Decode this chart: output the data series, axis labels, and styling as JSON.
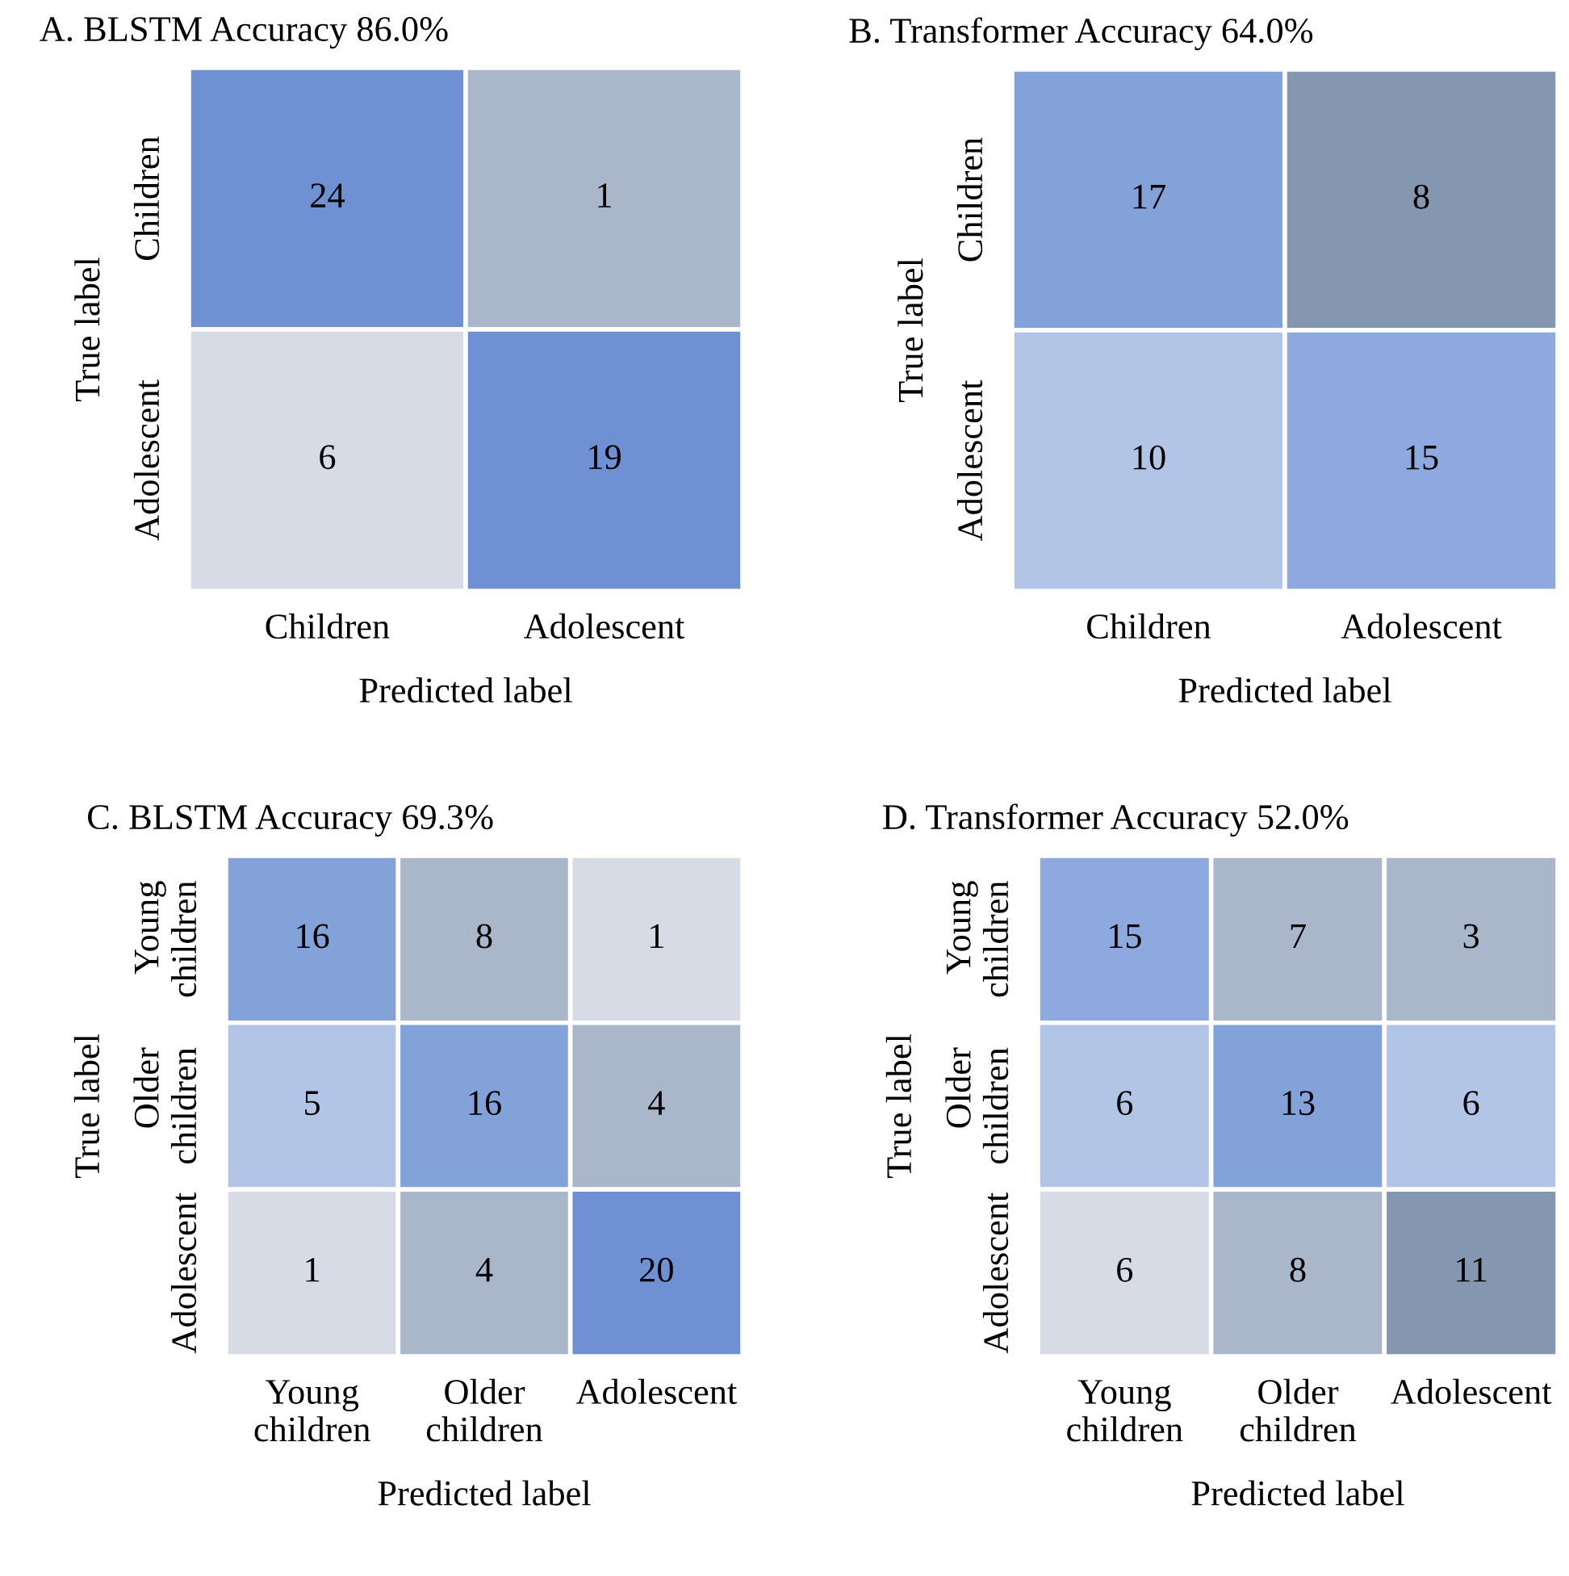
{
  "chart_data": [
    {
      "type": "heatmap",
      "title": "A. BLSTM Accuracy 86.0%",
      "xlabel": "Predicted label",
      "ylabel": "True label",
      "categories": [
        "Children",
        "Adolescent"
      ],
      "y_categories": [
        "Children",
        "Adolescent"
      ],
      "cells": [
        [
          24,
          1
        ],
        [
          6,
          19
        ]
      ],
      "colors": [
        "#6f91d3",
        "#aab6ca",
        "#d6dbe5",
        "#6f91d3"
      ],
      "data_labels": true
    },
    {
      "type": "heatmap",
      "title": "B. Transformer Accuracy 64.0%",
      "xlabel": "Predicted label",
      "ylabel": "True label",
      "categories": [
        "Children",
        "Adolescent"
      ],
      "y_categories": [
        "Children",
        "Adolescent"
      ],
      "cells": [
        [
          17,
          8
        ],
        [
          10,
          15
        ]
      ],
      "colors": [
        "#83a2da",
        "#8496b0",
        "#b3c5e6",
        "#8ea9dd"
      ],
      "data_labels": true
    },
    {
      "type": "heatmap",
      "title": "C. BLSTM Accuracy 69.3%",
      "xlabel": "Predicted label",
      "ylabel": "True label",
      "categories": [
        "Young\nchildren",
        "Older\nchildren",
        "Adolescent"
      ],
      "y_categories": [
        "Young\nchildren",
        "Older\nchildren",
        "Adolescent"
      ],
      "cells": [
        [
          16,
          8,
          1
        ],
        [
          5,
          16,
          4
        ],
        [
          1,
          4,
          20
        ]
      ],
      "colors": [
        "#83a2da",
        "#aab6ca",
        "#d6dbe5",
        "#b3c5e6",
        "#83a2da",
        "#aab6ca",
        "#d6dbe5",
        "#aab6ca",
        "#6f91d3"
      ],
      "data_labels": true
    },
    {
      "type": "heatmap",
      "title": "D. Transformer Accuracy 52.0%",
      "xlabel": "Predicted label",
      "ylabel": "True label",
      "categories": [
        "Young\nchildren",
        "Older\nchildren",
        "Adolescent"
      ],
      "y_categories": [
        "Young\nchildren",
        "Older\nchildren",
        "Adolescent"
      ],
      "cells": [
        [
          15,
          7,
          3
        ],
        [
          6,
          13,
          6
        ],
        [
          6,
          8,
          11
        ]
      ],
      "colors": [
        "#8ea9dd",
        "#aab6ca",
        "#aab6ca",
        "#b3c5e6",
        "#83a2da",
        "#b3c5e6",
        "#d6dbe5",
        "#aab6ca",
        "#8496b0"
      ],
      "data_labels": true
    }
  ]
}
